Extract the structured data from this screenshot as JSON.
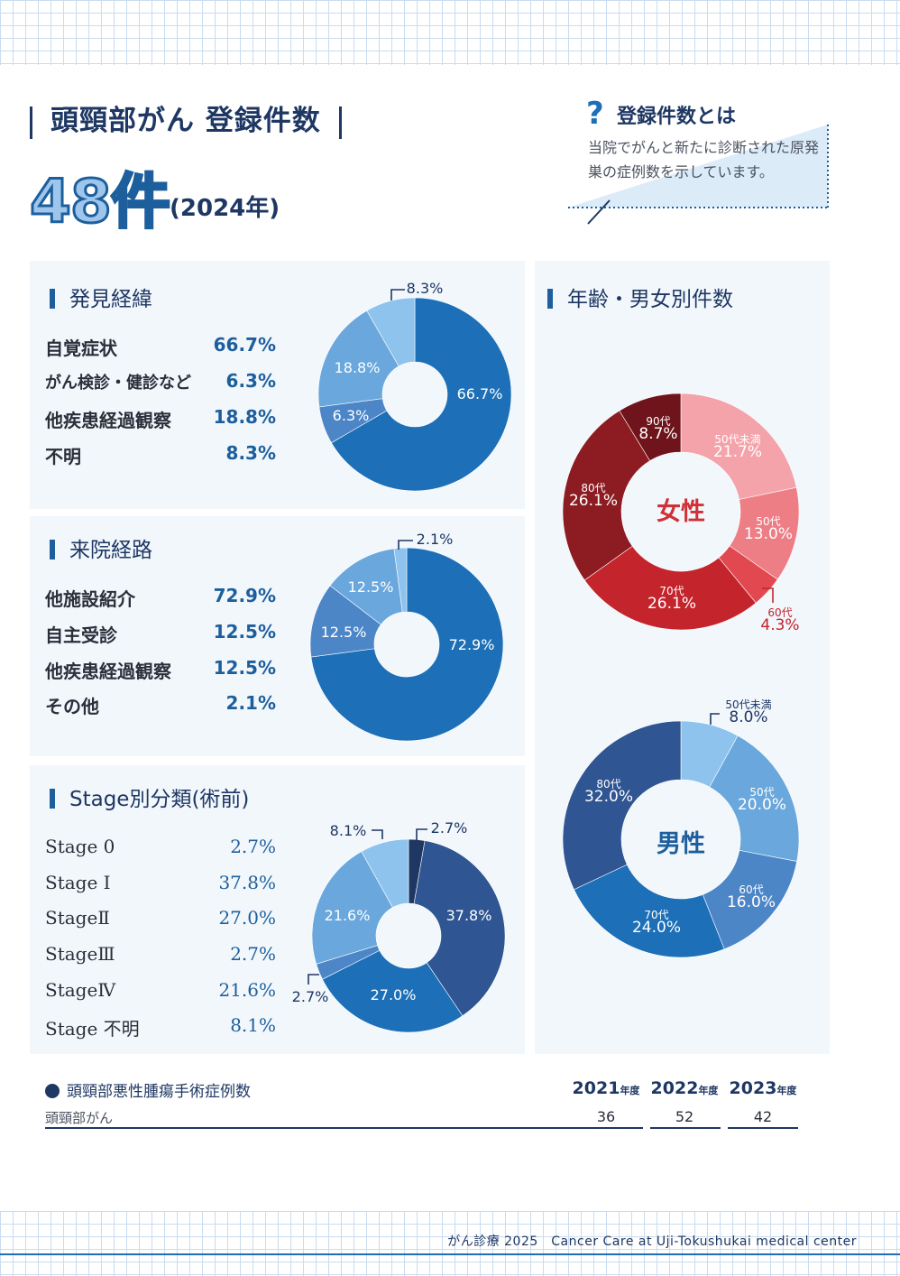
{
  "header": {
    "title": "頭頸部がん 登録件数",
    "count": "48件",
    "year": "(2024年)"
  },
  "definition": {
    "mark": "?",
    "title": "登録件数とは",
    "body": "当院でがんと新たに診断された原発巣の症例数を示しています。"
  },
  "sections": {
    "discovery": {
      "title": "発見経緯",
      "rows": [
        {
          "label": "自覚症状",
          "value": "66.7%"
        },
        {
          "label": "がん検診・健診など",
          "value": "6.3%"
        },
        {
          "label": "他疾患経過観察",
          "value": "18.8%"
        },
        {
          "label": "不明",
          "value": "8.3%"
        }
      ]
    },
    "route": {
      "title": "来院経路",
      "rows": [
        {
          "label": "他施設紹介",
          "value": "72.9%"
        },
        {
          "label": "自主受診",
          "value": "12.5%"
        },
        {
          "label": "他疾患経過観察",
          "value": "12.5%"
        },
        {
          "label": "その他",
          "value": "2.1%"
        }
      ]
    },
    "stage": {
      "title": "Stage別分類(術前)",
      "rows": [
        {
          "label": "Stage 0",
          "value": "2.7%"
        },
        {
          "label": "Stage I",
          "value": "37.8%"
        },
        {
          "label": "StageⅡ",
          "value": "27.0%"
        },
        {
          "label": "StageⅢ",
          "value": "2.7%"
        },
        {
          "label": "StageⅣ",
          "value": "21.6%"
        },
        {
          "label": "Stage 不明",
          "value": "8.1%"
        }
      ]
    },
    "age_sex": {
      "title": "年齢・男女別件数",
      "female_label": "女性",
      "male_label": "男性"
    }
  },
  "colors": {
    "navy": "#1e3763",
    "blue_dark": "#2f5592",
    "blue": "#1d6fb7",
    "blue_mid": "#4d86c7",
    "blue_light": "#6aa7dc",
    "blue_pale": "#8dc3ec",
    "red_dark": "#8c1c22",
    "red": "#c4242c",
    "red_mid": "#e2484f",
    "red_light": "#ee7e86",
    "red_pale": "#f4a3aa"
  },
  "chart_data": [
    {
      "type": "pie",
      "title": "発見経緯",
      "categories": [
        "自覚症状",
        "がん検診・健診など",
        "他疾患経過観察",
        "不明"
      ],
      "values": [
        66.7,
        6.3,
        18.8,
        8.3
      ],
      "labels": [
        "66.7%",
        "6.3%",
        "18.8%",
        "8.3%"
      ]
    },
    {
      "type": "pie",
      "title": "来院経路",
      "categories": [
        "他施設紹介",
        "自主受診",
        "他疾患経過観察",
        "その他"
      ],
      "values": [
        72.9,
        12.5,
        12.5,
        2.1
      ],
      "labels": [
        "72.9%",
        "12.5%",
        "12.5%",
        "2.1%"
      ]
    },
    {
      "type": "pie",
      "title": "Stage別分類(術前)",
      "categories": [
        "Stage 0",
        "Stage I",
        "StageⅡ",
        "StageⅢ",
        "StageⅣ",
        "Stage 不明"
      ],
      "values": [
        2.7,
        37.8,
        27.0,
        2.7,
        21.6,
        8.1
      ],
      "labels": [
        "2.7%",
        "37.8%",
        "27.0%",
        "2.7%",
        "21.6%",
        "8.1%"
      ]
    },
    {
      "type": "pie",
      "title": "女性",
      "categories": [
        "50代未満",
        "50代",
        "60代",
        "70代",
        "80代",
        "90代"
      ],
      "values": [
        21.7,
        13.0,
        4.3,
        26.1,
        26.1,
        8.7
      ],
      "labels": [
        "21.7%",
        "13.0%",
        "4.3%",
        "26.1%",
        "26.1%",
        "8.7%"
      ]
    },
    {
      "type": "pie",
      "title": "男性",
      "categories": [
        "50代未満",
        "50代",
        "60代",
        "70代",
        "80代"
      ],
      "values": [
        8.0,
        20.0,
        16.0,
        24.0,
        32.0
      ],
      "labels": [
        "8.0%",
        "20.0%",
        "16.0%",
        "24.0%",
        "32.0%"
      ]
    },
    {
      "type": "table",
      "title": "頭頸部悪性腫瘍手術症例数",
      "columns": [
        "2021",
        "2022",
        "2023"
      ],
      "column_suffix": "年度",
      "rows": [
        {
          "label": "頭頸部がん",
          "values": [
            36,
            52,
            42
          ]
        }
      ]
    }
  ],
  "footer": {
    "text": "がん診療 2025　Cancer Care at Uji-Tokushukai medical center"
  }
}
